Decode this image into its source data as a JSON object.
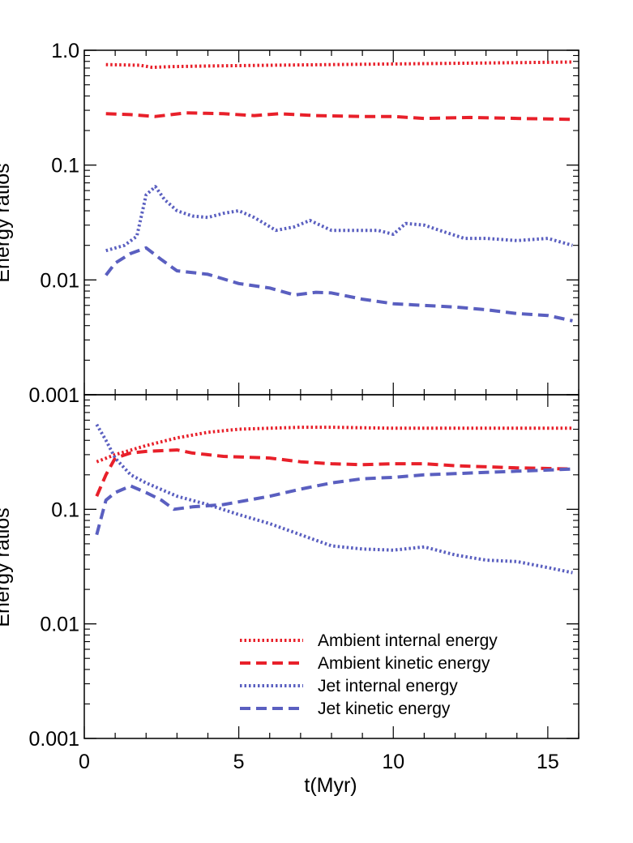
{
  "colors": {
    "ambient": "#e8202a",
    "jet": "#5a5fc0",
    "axis": "#000000"
  },
  "chart_data": [
    {
      "type": "line",
      "title": "",
      "xlabel": "",
      "ylabel": "Energy ratios",
      "yscale": "log",
      "xlim": [
        0,
        16
      ],
      "ylim": [
        0.001,
        1.0
      ],
      "x_ticks": [
        0,
        5,
        10,
        15
      ],
      "y_ticks": [
        0.001,
        0.01,
        0.1,
        1.0
      ],
      "y_tick_labels": [
        "0.001",
        "0.01",
        "0.1",
        "1.0"
      ],
      "series": [
        {
          "key": "ambient_internal",
          "style": "dotted",
          "color": "#e8202a",
          "x": [
            0.7,
            1.8,
            2.2,
            2.8,
            4,
            6,
            8,
            10,
            12,
            14,
            15.8
          ],
          "y": [
            0.75,
            0.74,
            0.71,
            0.72,
            0.73,
            0.74,
            0.75,
            0.76,
            0.77,
            0.78,
            0.79
          ]
        },
        {
          "key": "ambient_kinetic",
          "style": "dashed",
          "color": "#e8202a",
          "x": [
            0.7,
            1.5,
            2.3,
            3.3,
            4.5,
            5.5,
            6.3,
            7.5,
            9,
            10,
            11,
            12.5,
            14,
            15.8
          ],
          "y": [
            0.28,
            0.275,
            0.265,
            0.285,
            0.28,
            0.27,
            0.28,
            0.27,
            0.265,
            0.265,
            0.255,
            0.26,
            0.255,
            0.25
          ]
        },
        {
          "key": "jet_internal",
          "style": "dotted",
          "color": "#5a5fc0",
          "x": [
            0.7,
            1.3,
            1.7,
            2.0,
            2.3,
            2.6,
            3.0,
            3.5,
            4.0,
            4.5,
            5.0,
            5.5,
            6.2,
            6.8,
            7.3,
            8.0,
            9.0,
            9.5,
            10.0,
            10.4,
            11.0,
            11.5,
            12.3,
            13.0,
            14.0,
            15.0,
            15.8
          ],
          "y": [
            0.018,
            0.02,
            0.024,
            0.055,
            0.065,
            0.05,
            0.04,
            0.036,
            0.035,
            0.038,
            0.04,
            0.035,
            0.027,
            0.029,
            0.033,
            0.027,
            0.027,
            0.027,
            0.025,
            0.031,
            0.03,
            0.027,
            0.023,
            0.023,
            0.022,
            0.023,
            0.02
          ]
        },
        {
          "key": "jet_kinetic",
          "style": "dashed",
          "color": "#5a5fc0",
          "x": [
            0.7,
            1.0,
            1.5,
            2.0,
            2.5,
            3.0,
            4.0,
            5.0,
            6.0,
            6.8,
            7.5,
            8.0,
            9.0,
            10.0,
            11.0,
            12.0,
            13.0,
            14.0,
            15.0,
            15.8
          ],
          "y": [
            0.011,
            0.014,
            0.017,
            0.019,
            0.015,
            0.012,
            0.0112,
            0.0093,
            0.0085,
            0.0074,
            0.0078,
            0.0077,
            0.0068,
            0.0062,
            0.006,
            0.0058,
            0.0055,
            0.0051,
            0.0049,
            0.0044
          ]
        }
      ]
    },
    {
      "type": "line",
      "title": "",
      "xlabel": "t(Myr)",
      "ylabel": "Energy ratios",
      "yscale": "log",
      "xlim": [
        0,
        16
      ],
      "ylim": [
        0.001,
        1.0
      ],
      "x_ticks": [
        0,
        5,
        10,
        15
      ],
      "x_tick_labels": [
        "0",
        "5",
        "10",
        "15"
      ],
      "y_ticks": [
        0.001,
        0.01,
        0.1
      ],
      "y_tick_labels": [
        "0.001",
        "0.01",
        "0.1"
      ],
      "legend": {
        "placement": "bottom-right"
      },
      "series": [
        {
          "key": "ambient_internal",
          "name": "Ambient internal energy",
          "style": "dotted",
          "color": "#e8202a",
          "x": [
            0.4,
            1.0,
            2.0,
            3.0,
            4.0,
            5.0,
            6.0,
            7.0,
            8.0,
            9.0,
            10.0,
            12.0,
            14.0,
            15.8
          ],
          "y": [
            0.26,
            0.3,
            0.36,
            0.42,
            0.47,
            0.5,
            0.51,
            0.52,
            0.52,
            0.515,
            0.51,
            0.51,
            0.51,
            0.51
          ]
        },
        {
          "key": "ambient_kinetic",
          "name": "Ambient kinetic energy",
          "style": "dashed",
          "color": "#e8202a",
          "x": [
            0.4,
            0.7,
            1.0,
            1.5,
            2.0,
            3.0,
            3.5,
            4.5,
            6.0,
            7.0,
            8.0,
            9.0,
            10.0,
            11.0,
            12.0,
            14.0,
            15.8
          ],
          "y": [
            0.13,
            0.2,
            0.28,
            0.31,
            0.32,
            0.33,
            0.31,
            0.29,
            0.28,
            0.26,
            0.25,
            0.245,
            0.25,
            0.25,
            0.24,
            0.23,
            0.225
          ]
        },
        {
          "key": "jet_internal",
          "name": "Jet internal energy",
          "style": "dotted",
          "color": "#5a5fc0",
          "x": [
            0.4,
            0.7,
            1.0,
            1.5,
            2.0,
            3.0,
            4.0,
            5.0,
            6.0,
            7.0,
            8.0,
            9.0,
            10.0,
            11.0,
            12.0,
            13.0,
            14.0,
            15.0,
            15.8
          ],
          "y": [
            0.55,
            0.4,
            0.28,
            0.2,
            0.17,
            0.13,
            0.11,
            0.09,
            0.075,
            0.06,
            0.048,
            0.045,
            0.044,
            0.047,
            0.04,
            0.036,
            0.035,
            0.031,
            0.028
          ]
        },
        {
          "key": "jet_kinetic",
          "name": "Jet kinetic energy",
          "style": "dashed",
          "color": "#5a5fc0",
          "x": [
            0.4,
            0.7,
            1.0,
            1.5,
            2.0,
            2.5,
            2.9,
            3.5,
            4.5,
            6.0,
            7.0,
            8.0,
            9.0,
            10.0,
            11.0,
            12.0,
            13.0,
            14.0,
            15.0,
            15.8
          ],
          "y": [
            0.06,
            0.12,
            0.14,
            0.16,
            0.14,
            0.12,
            0.1,
            0.105,
            0.11,
            0.13,
            0.15,
            0.17,
            0.185,
            0.19,
            0.2,
            0.205,
            0.21,
            0.215,
            0.22,
            0.225
          ]
        }
      ]
    }
  ]
}
